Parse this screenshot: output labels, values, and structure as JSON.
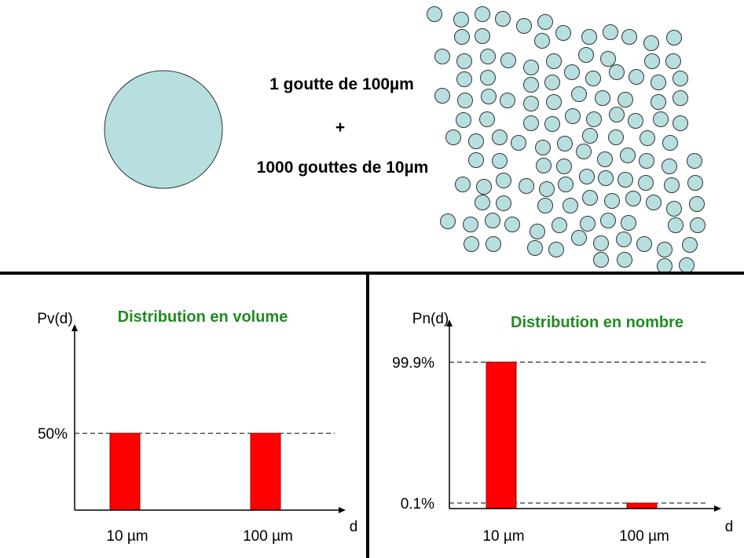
{
  "slide": {
    "large_drop_label": "1 goutte de 100µm",
    "plus_sign": "+",
    "small_drops_label": "1000 gouttes de 10µm",
    "droplet_fill": "#b7dfdf",
    "droplet_stroke": "#333333",
    "divider_color": "#000000"
  },
  "chart_data": [
    {
      "type": "bar",
      "title": "Distribution en volume",
      "title_color": "#1f8c1f",
      "ylabel": "Pv(d)",
      "xlabel": "d",
      "categories": [
        "10 µm",
        "100 µm"
      ],
      "values": [
        50,
        50
      ],
      "ylim": [
        0,
        121
      ],
      "yticks": [
        {
          "value": 50,
          "label": "50%"
        }
      ],
      "grid": false,
      "bar_color": "#ff0000",
      "bar_stroke": "#990000"
    },
    {
      "type": "bar",
      "title": "Distribution en nombre",
      "title_color": "#1f8c1f",
      "ylabel": "Pn(d)",
      "xlabel": "d",
      "categories": [
        "10 µm",
        "100 µm"
      ],
      "values": [
        99.9,
        0.1
      ],
      "ylim": [
        0,
        129
      ],
      "yticks": [
        {
          "value": 99.9,
          "label": "99.9%"
        },
        {
          "value": 0.1,
          "label": "0.1%"
        }
      ],
      "grid": false,
      "bar_color": "#ff0000",
      "bar_stroke": "#990000"
    }
  ]
}
